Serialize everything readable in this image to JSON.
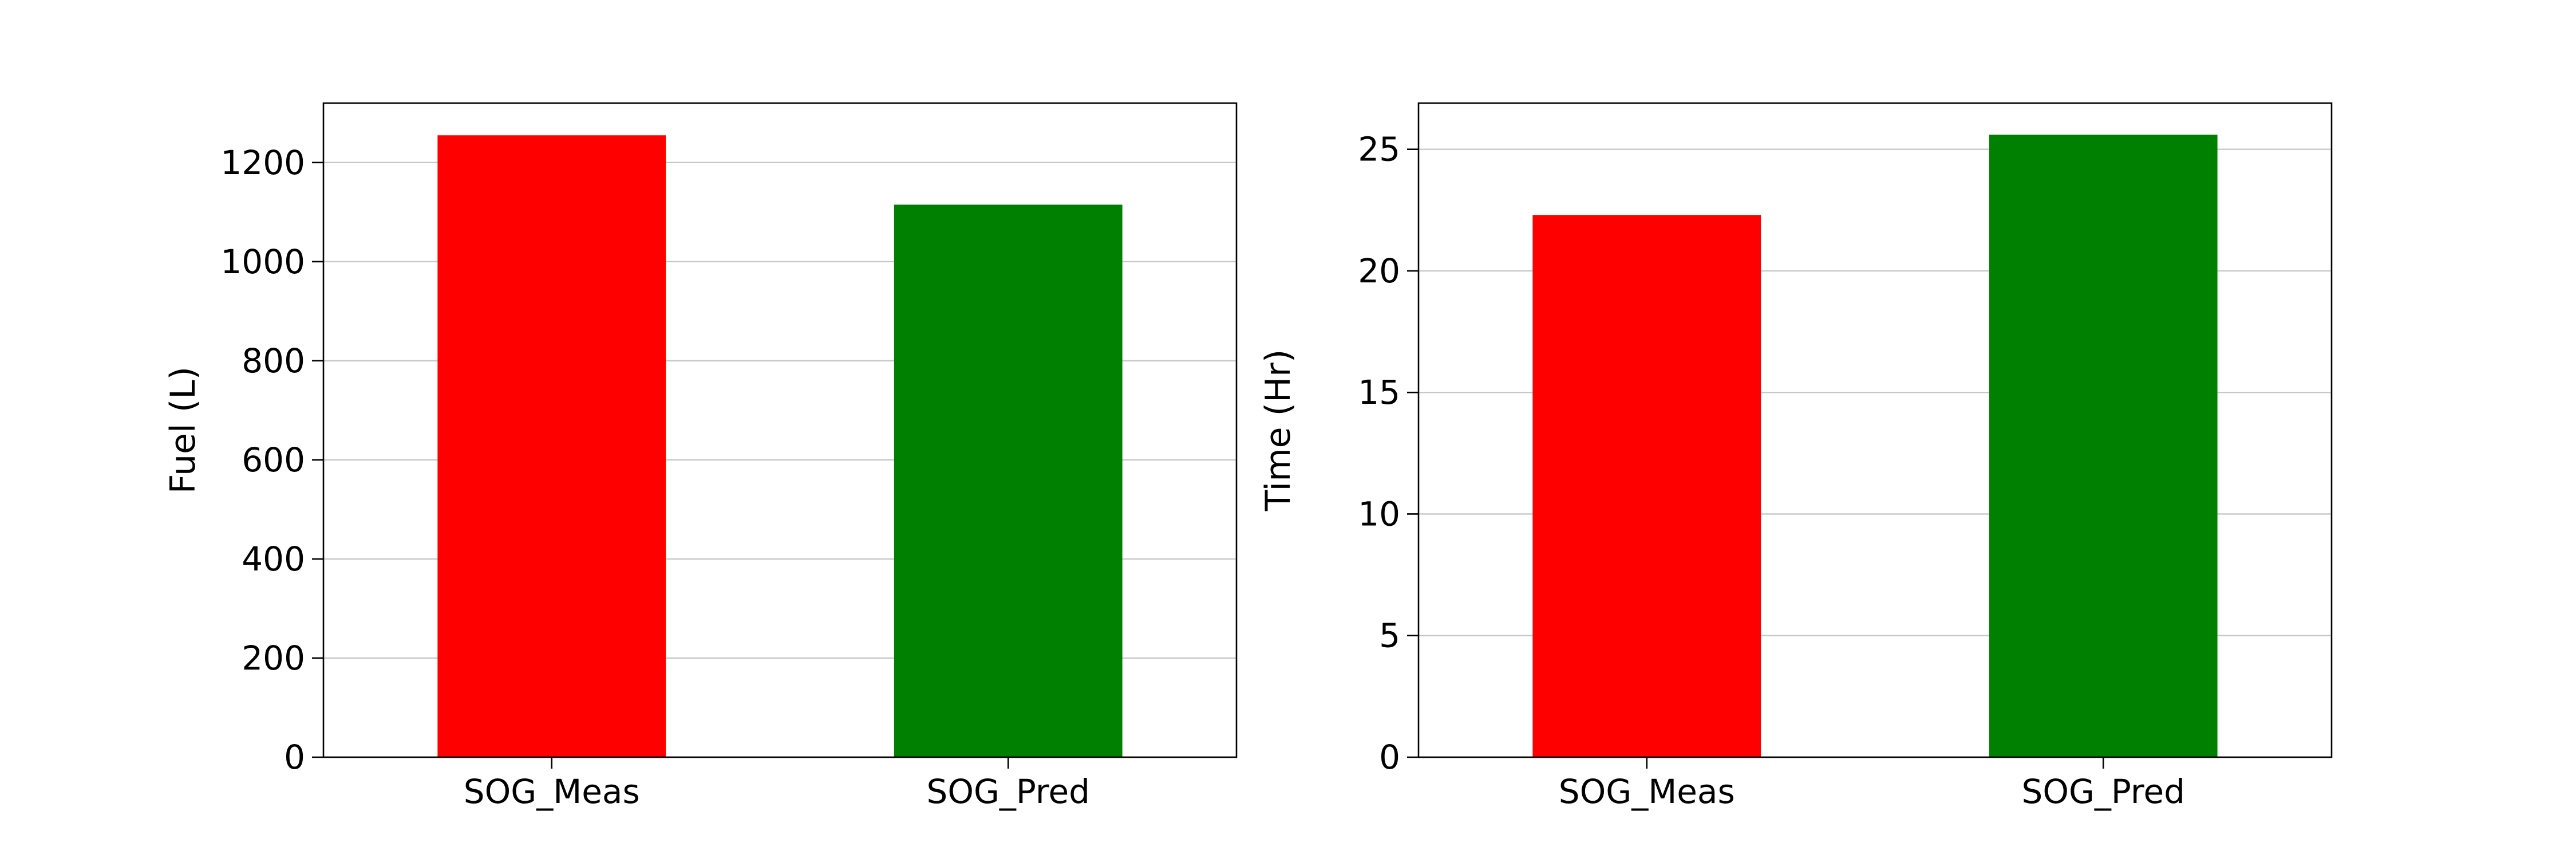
{
  "chart_data": [
    {
      "type": "bar",
      "title": "",
      "xlabel": "",
      "ylabel": "Fuel (L)",
      "categories": [
        "SOG_Meas",
        "SOG_Pred"
      ],
      "values": [
        1255,
        1115
      ],
      "bar_colors": [
        "#ff0000",
        "#008000"
      ],
      "ylim": [
        0,
        1320
      ],
      "yticks": [
        0,
        200,
        400,
        600,
        800,
        1000,
        1200
      ],
      "grid": "y"
    },
    {
      "type": "bar",
      "title": "",
      "xlabel": "",
      "ylabel": "Time (Hr)",
      "categories": [
        "SOG_Meas",
        "SOG_Pred"
      ],
      "values": [
        22.3,
        25.6
      ],
      "bar_colors": [
        "#ff0000",
        "#008000"
      ],
      "ylim": [
        0,
        26.9
      ],
      "yticks": [
        0,
        5,
        10,
        15,
        20,
        25
      ],
      "grid": "y"
    }
  ]
}
